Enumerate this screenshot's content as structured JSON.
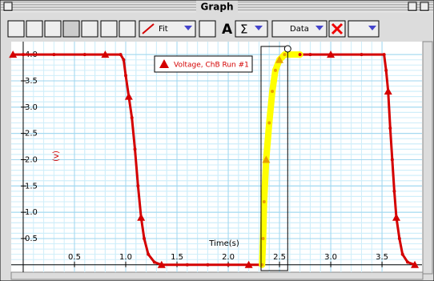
{
  "window": {
    "title": "Graph",
    "toolbar": {
      "fit": "Fit",
      "data": "Data"
    }
  },
  "chart_data": {
    "type": "line",
    "x_label": "Time(s)",
    "y_label": "(v)",
    "x": [
      -0.1,
      0.0,
      0.3,
      0.6,
      0.8,
      0.95,
      0.98,
      1.0,
      1.03,
      1.06,
      1.09,
      1.12,
      1.15,
      1.18,
      1.22,
      1.28,
      1.35,
      1.6,
      1.8,
      2.0,
      2.2,
      2.33,
      2.34,
      2.35,
      2.37,
      2.4,
      2.43,
      2.46,
      2.5,
      2.55,
      2.7,
      2.8,
      3.0,
      3.3,
      3.52,
      3.54,
      3.56,
      3.58,
      3.6,
      3.62,
      3.64,
      3.67,
      3.7,
      3.75,
      3.82
    ],
    "series": [
      {
        "name": "Voltage, ChB Run #1",
        "color": "#d40000",
        "values": [
          4.0,
          4.0,
          4.0,
          4.0,
          4.0,
          4.0,
          3.9,
          3.6,
          3.2,
          2.8,
          2.2,
          1.5,
          0.9,
          0.5,
          0.2,
          0.05,
          0.0,
          0.0,
          0.0,
          0.0,
          0.0,
          0.0,
          0.5,
          1.2,
          2.0,
          2.7,
          3.3,
          3.7,
          3.9,
          4.0,
          4.0,
          4.0,
          4.0,
          4.0,
          4.0,
          3.7,
          3.3,
          2.6,
          2.0,
          1.4,
          0.9,
          0.5,
          0.2,
          0.05,
          0.0
        ]
      }
    ],
    "highlight_range": [
      2.32,
      2.58
    ],
    "highlight_color": "#ffff00",
    "xlim": [
      -0.117,
      3.89
    ],
    "ylim": [
      -0.11,
      4.17
    ],
    "xticks": [
      0.5,
      {
        "value": 1.0,
        "label": "1.0"
      },
      1.5,
      {
        "value": 2.0,
        "label": "2.0"
      },
      2.5,
      {
        "value": 3.0,
        "label": "3.0"
      },
      3.5
    ],
    "yticks": [
      0.5,
      {
        "value": 1.0,
        "label": "1.0"
      },
      1.5,
      {
        "value": 2.0,
        "label": "2.0"
      },
      2.5,
      {
        "value": 3.0,
        "label": "3.0"
      },
      3.5,
      {
        "value": 4.0,
        "label": "4.0"
      }
    ],
    "grid": true
  }
}
